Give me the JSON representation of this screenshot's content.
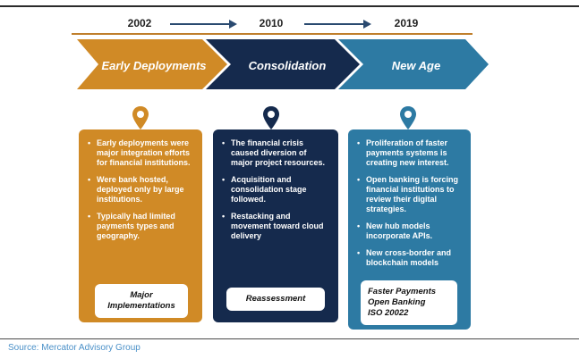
{
  "colors": {
    "early": "#d08a26",
    "consolidation": "#152a4d",
    "new_age": "#2d7aa3",
    "timeline": "#c07f2c",
    "arrow": "#2a4a70",
    "source": "#4a90c8"
  },
  "timeline": {
    "years": [
      "2002",
      "2010",
      "2019"
    ]
  },
  "phases": [
    {
      "title": "Early Deployments",
      "icon": "location-pin-icon",
      "bullets": [
        "Early deployments were major integration efforts for financial institutions.",
        "Were bank hosted, deployed only by large institutions.",
        "Typically had limited payments types and geography."
      ],
      "footer": [
        "Major",
        "Implementations"
      ]
    },
    {
      "title": "Consolidation",
      "icon": "location-pin-icon",
      "bullets": [
        "The financial crisis caused diversion of major project resources.",
        "Acquisition and consolidation stage followed.",
        "Restacking and movement toward cloud delivery"
      ],
      "footer": [
        "Reassessment"
      ]
    },
    {
      "title": "New Age",
      "icon": "location-pin-icon",
      "bullets": [
        "Proliferation of faster payments systems is creating new interest.",
        "Open banking is forcing financial institutions to review their digital strategies.",
        "New hub models incorporate APIs.",
        "New cross-border and blockchain models"
      ],
      "footer": [
        "Faster Payments",
        "Open Banking",
        "ISO 20022"
      ]
    }
  ],
  "source": "Source: Mercator Advisory Group"
}
